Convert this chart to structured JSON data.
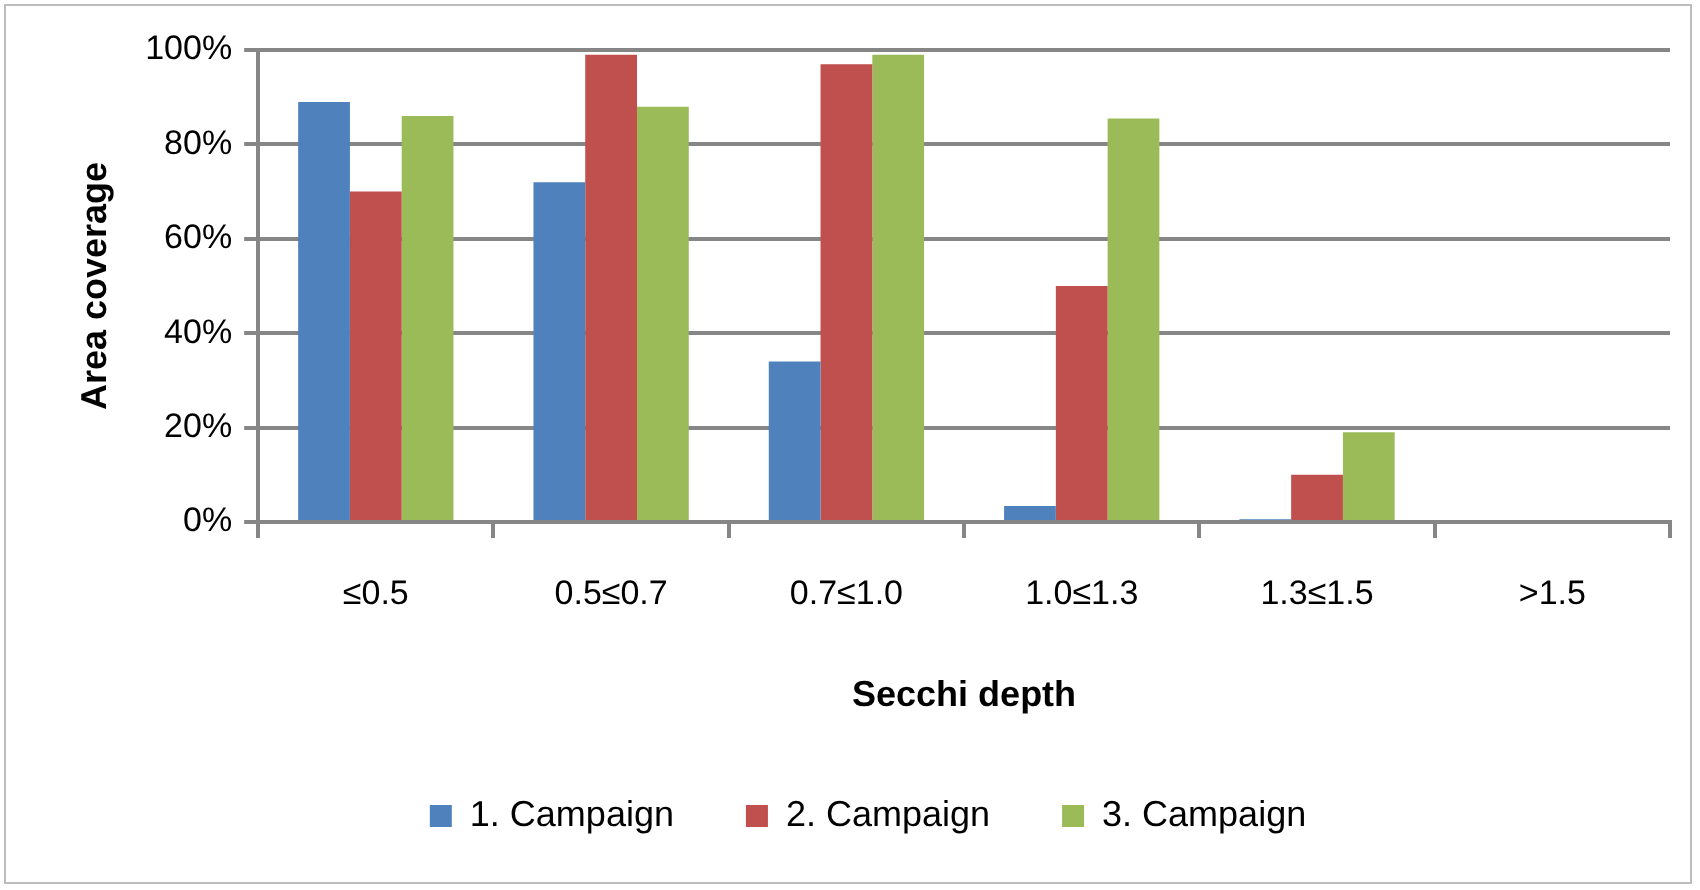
{
  "chart_data": {
    "type": "bar",
    "xlabel": "Secchi depth",
    "ylabel": "Area coverage",
    "categories": [
      "≤0.5",
      "0.5≤0.7",
      "0.7≤1.0",
      "1.0≤1.3",
      "1.3≤1.5",
      ">1.5"
    ],
    "series": [
      {
        "name": "1. Campaign",
        "color": "#4f81bd",
        "values": [
          89,
          72,
          34,
          3.4,
          0.6,
          0
        ]
      },
      {
        "name": "2. Campaign",
        "color": "#c0504d",
        "values": [
          70,
          99,
          97,
          50,
          10,
          null
        ]
      },
      {
        "name": "3. Campaign",
        "color": "#9bbb59",
        "values": [
          86,
          88,
          99,
          85.5,
          19,
          0
        ]
      }
    ],
    "ylim": [
      0,
      100
    ],
    "yticks": [
      {
        "value": 0,
        "label": "0%"
      },
      {
        "value": 20,
        "label": "20%"
      },
      {
        "value": 40,
        "label": "40%"
      },
      {
        "value": 60,
        "label": "60%"
      },
      {
        "value": 80,
        "label": "80%"
      },
      {
        "value": 100,
        "label": "100%"
      }
    ],
    "grid": "y",
    "legend": "bottom"
  }
}
